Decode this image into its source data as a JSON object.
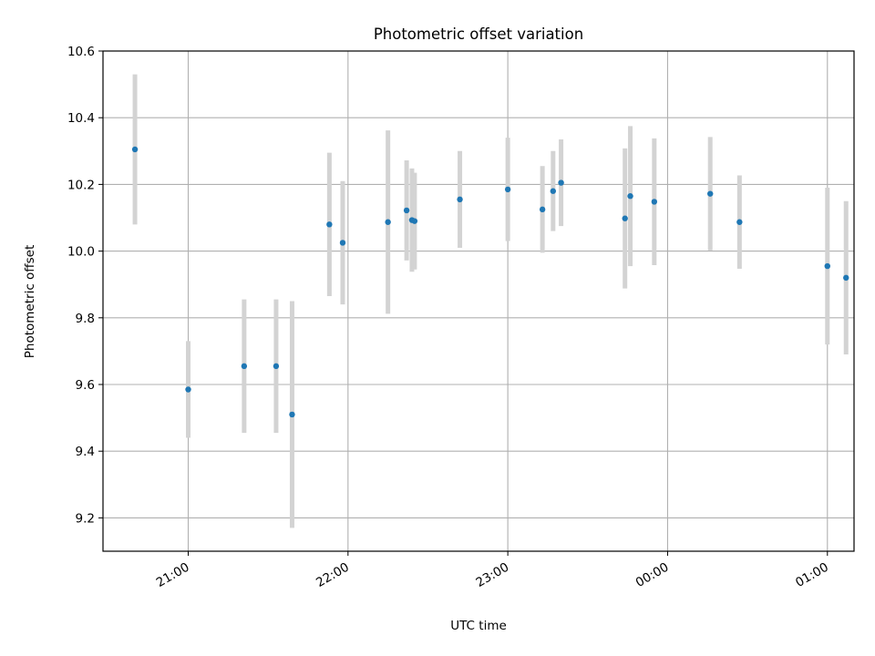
{
  "chart_data": {
    "type": "scatter",
    "title": "Photometric offset variation",
    "xlabel": "UTC time",
    "ylabel": "Photometric offset",
    "xaxis": "time",
    "xlim": [
      "20:28",
      "01:10"
    ],
    "ylim": [
      9.1,
      10.6
    ],
    "xticks": [
      "21:00",
      "22:00",
      "23:00",
      "00:00",
      "01:00"
    ],
    "yticks": [
      "9.2",
      "9.4",
      "9.6",
      "9.8",
      "10.0",
      "10.2",
      "10.4",
      "10.6"
    ],
    "grid": true,
    "colors": {
      "point": "#1f77b4",
      "errorbar": "#d3d3d3",
      "grid": "#b0b0b0"
    },
    "points": [
      {
        "t": "20:40",
        "y": 10.305,
        "err": 0.225
      },
      {
        "t": "21:00",
        "y": 9.585,
        "err": 0.145
      },
      {
        "t": "21:21",
        "y": 9.655,
        "err": 0.2
      },
      {
        "t": "21:33",
        "y": 9.655,
        "err": 0.2
      },
      {
        "t": "21:39",
        "y": 9.51,
        "err": 0.34
      },
      {
        "t": "21:53",
        "y": 10.08,
        "err": 0.215
      },
      {
        "t": "21:58",
        "y": 10.025,
        "err": 0.185
      },
      {
        "t": "22:15",
        "y": 10.087,
        "err": 0.275
      },
      {
        "t": "22:22",
        "y": 10.122,
        "err": 0.15
      },
      {
        "t": "22:24",
        "y": 10.093,
        "err": 0.155
      },
      {
        "t": "22:25",
        "y": 10.09,
        "err": 0.145
      },
      {
        "t": "22:42",
        "y": 10.155,
        "err": 0.145
      },
      {
        "t": "23:00",
        "y": 10.185,
        "err": 0.155
      },
      {
        "t": "23:13",
        "y": 10.125,
        "err": 0.13
      },
      {
        "t": "23:17",
        "y": 10.18,
        "err": 0.12
      },
      {
        "t": "23:20",
        "y": 10.205,
        "err": 0.13
      },
      {
        "t": "23:44",
        "y": 10.098,
        "err": 0.21
      },
      {
        "t": "23:46",
        "y": 10.165,
        "err": 0.21
      },
      {
        "t": "23:55",
        "y": 10.148,
        "err": 0.19
      },
      {
        "t": "00:16",
        "y": 10.172,
        "err": 0.17
      },
      {
        "t": "00:27",
        "y": 10.087,
        "err": 0.14
      },
      {
        "t": "01:00",
        "y": 9.955,
        "err": 0.235
      },
      {
        "t": "01:07",
        "y": 9.92,
        "err": 0.23
      }
    ]
  }
}
